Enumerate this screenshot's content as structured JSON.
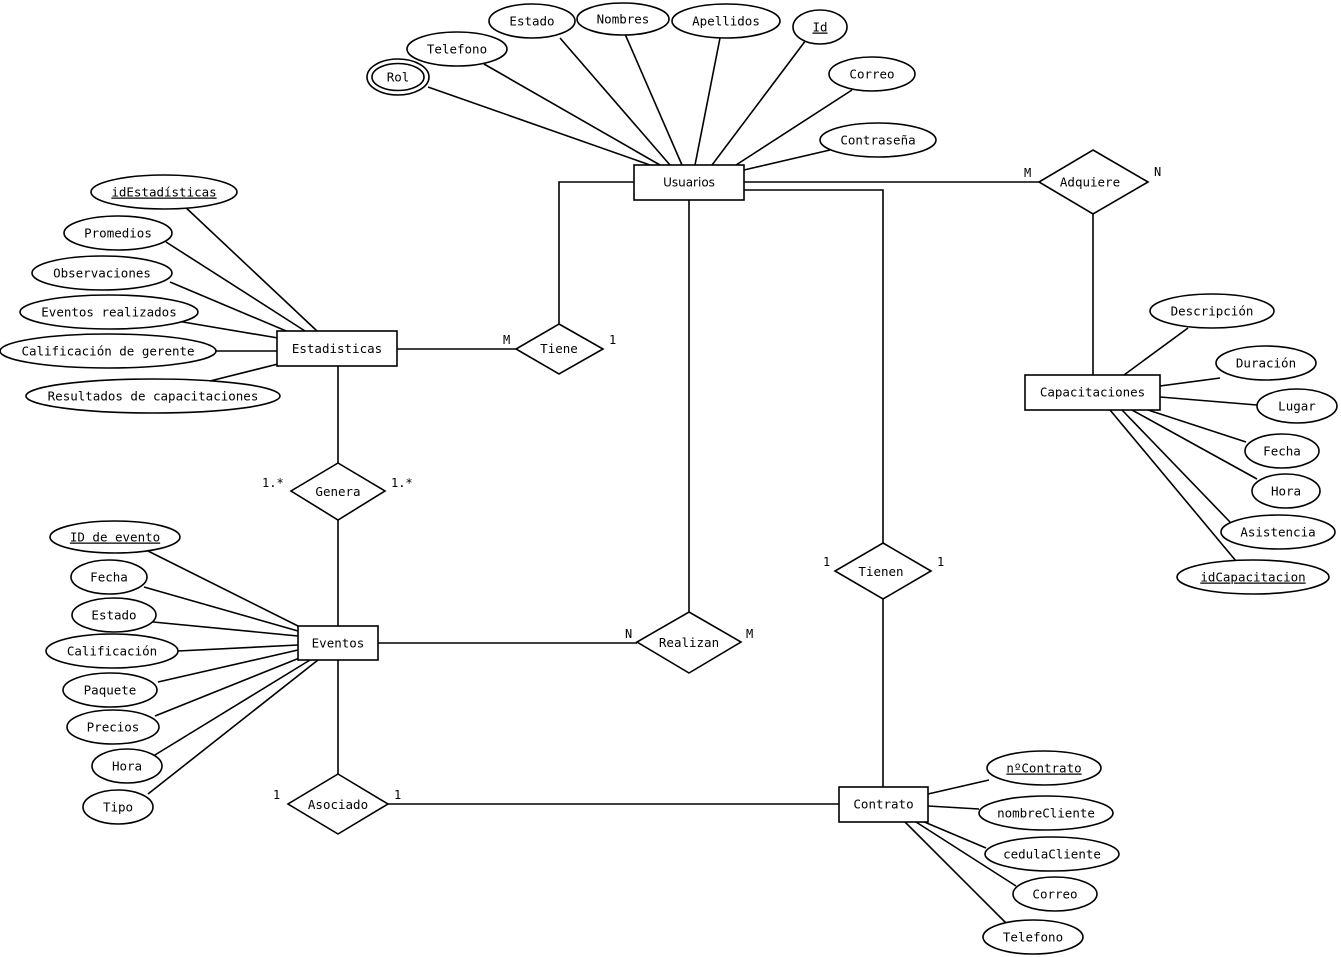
{
  "entities": {
    "usuarios": "Usuarios",
    "estadisticas": "Estadisticas",
    "eventos": "Eventos",
    "contrato": "Contrato",
    "capacitaciones": "Capacitaciones"
  },
  "relationships": {
    "tiene": "Tiene",
    "genera": "Genera",
    "realizan": "Realizan",
    "asociado": "Asociado",
    "tienen": "Tienen",
    "adquiere": "Adquiere"
  },
  "attributes": {
    "usuarios": {
      "rol": "Rol",
      "telefono": "Telefono",
      "estado": "Estado",
      "nombres": "Nombres",
      "apellidos": "Apellidos",
      "id": "Id",
      "correo": "Correo",
      "contrasena": "Contraseña"
    },
    "estadisticas": {
      "id": "idEstadísticas",
      "promedios": "Promedios",
      "observaciones": "Observaciones",
      "eventos_realizados": "Eventos realizados",
      "calificacion_gerente": "Calificación de gerente",
      "resultados_capacitaciones": "Resultados de capacitaciones"
    },
    "eventos": {
      "id": "ID de evento",
      "fecha": "Fecha",
      "estado": "Estado",
      "calificacion": "Calificación",
      "paquete": "Paquete",
      "precios": "Precios",
      "hora": "Hora",
      "tipo": "Tipo"
    },
    "capacitaciones": {
      "descripcion": "Descripción",
      "duracion": "Duración",
      "lugar": "Lugar",
      "fecha": "Fecha",
      "hora": "Hora",
      "asistencia": "Asistencia",
      "id": "idCapacitacion"
    },
    "contrato": {
      "numero": "nºContrato",
      "nombre_cliente": "nombreCliente",
      "cedula_cliente": "cedulaCliente",
      "correo": "Correo",
      "telefono": "Telefono"
    }
  },
  "cardinalities": {
    "tiene_left": "M",
    "tiene_right": "1",
    "genera_left": "1.*",
    "genera_right": "1.*",
    "realizan_left": "N",
    "realizan_right": "M",
    "asociado_left": "1",
    "asociado_right": "1",
    "tienen_left": "1",
    "tienen_right": "1",
    "adquiere_left": "M",
    "adquiere_right": "N"
  }
}
